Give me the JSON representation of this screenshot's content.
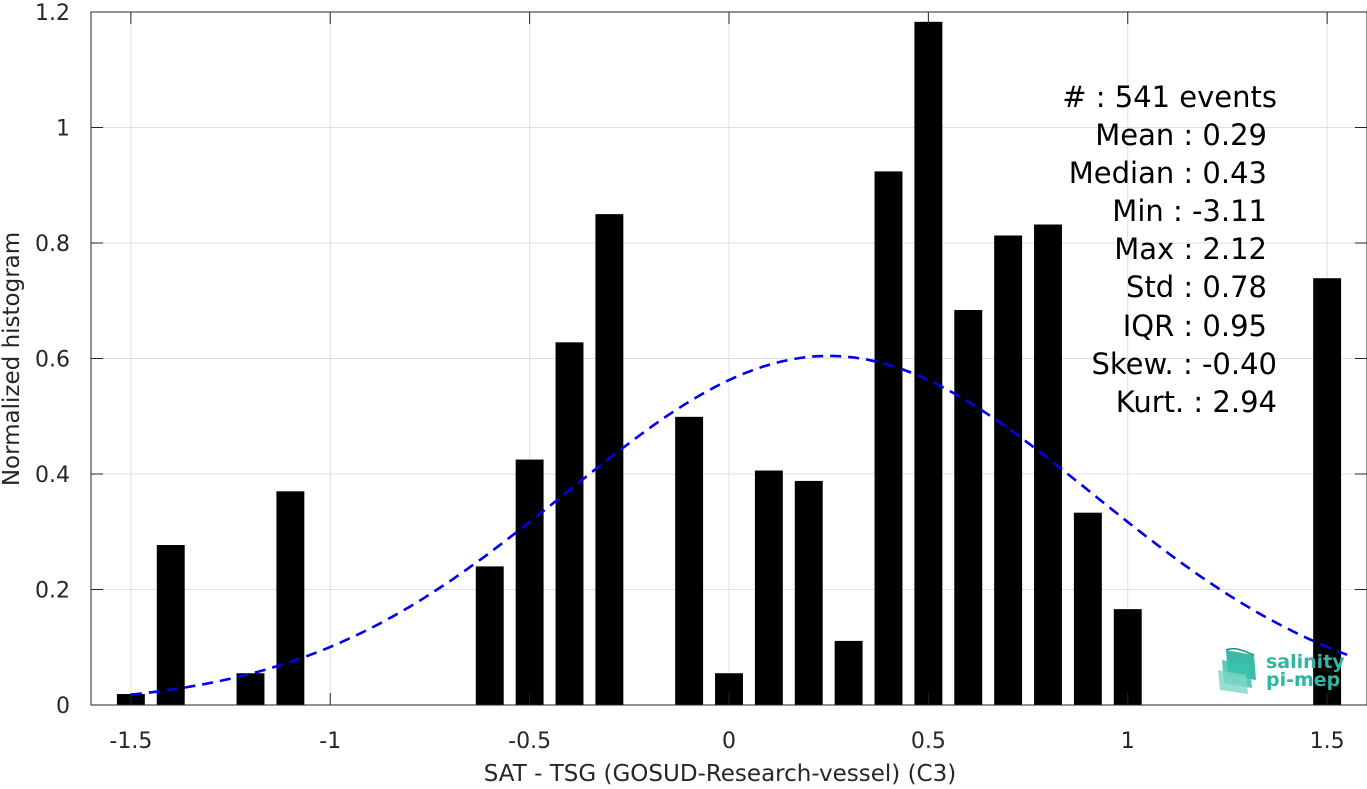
{
  "chart_data": {
    "type": "bar",
    "xlabel": "SAT - TSG (GOSUD-Research-vessel) (C3)",
    "ylabel": "Normalized histogram",
    "xlim": [
      -1.6,
      1.6
    ],
    "ylim": [
      0,
      1.2
    ],
    "grid": true,
    "bar_width": 0.07,
    "xticks": [
      -1.5,
      -1,
      -0.5,
      0,
      0.5,
      1,
      1.5
    ],
    "xtick_labels": [
      "-1.5",
      "-1",
      "-0.5",
      "0",
      "0.5",
      "1",
      "1.5"
    ],
    "yticks": [
      0,
      0.2,
      0.4,
      0.6,
      0.8,
      1,
      1.2
    ],
    "ytick_labels": [
      "0",
      "0.2",
      "0.4",
      "0.6",
      "0.8",
      "1",
      "1.2"
    ],
    "bars": [
      {
        "x": -1.5,
        "y": 0.019
      },
      {
        "x": -1.4,
        "y": 0.277
      },
      {
        "x": -1.2,
        "y": 0.055
      },
      {
        "x": -1.1,
        "y": 0.37
      },
      {
        "x": -0.6,
        "y": 0.24
      },
      {
        "x": -0.5,
        "y": 0.425
      },
      {
        "x": -0.4,
        "y": 0.628
      },
      {
        "x": -0.3,
        "y": 0.85
      },
      {
        "x": -0.1,
        "y": 0.499
      },
      {
        "x": 0.0,
        "y": 0.055
      },
      {
        "x": 0.1,
        "y": 0.406
      },
      {
        "x": 0.2,
        "y": 0.388
      },
      {
        "x": 0.3,
        "y": 0.111
      },
      {
        "x": 0.4,
        "y": 0.924
      },
      {
        "x": 0.5,
        "y": 1.183
      },
      {
        "x": 0.6,
        "y": 0.684
      },
      {
        "x": 0.7,
        "y": 0.813
      },
      {
        "x": 0.8,
        "y": 0.832
      },
      {
        "x": 0.9,
        "y": 0.333
      },
      {
        "x": 1.0,
        "y": 0.166
      },
      {
        "x": 1.5,
        "y": 0.739
      }
    ],
    "fit_curve": {
      "type": "gaussian",
      "mean": 0.25,
      "std": 0.66,
      "x_range": [
        -1.5,
        1.55
      ],
      "color": "#0000ee",
      "style": "dashed"
    },
    "bar_color": "#000000"
  },
  "stats": {
    "count": "#  : 541 events",
    "mean": "Mean : 0.29",
    "median": "Median : 0.43",
    "min": "Min : -3.11",
    "max": "Max : 2.12",
    "std": "Std : 0.78",
    "iqr": "IQR : 0.95",
    "skew": "Skew. : -0.40",
    "kurt": "Kurt. : 2.94"
  },
  "logo": {
    "line1": "salinity",
    "line2": "pi-mep",
    "color": "#2fb7a2"
  }
}
